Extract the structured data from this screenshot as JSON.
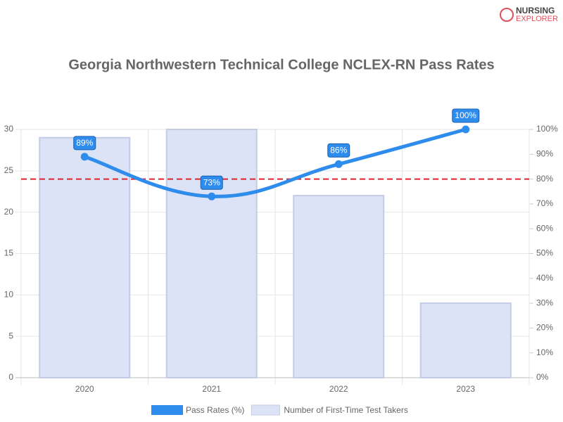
{
  "branding": {
    "line1": "NURSING",
    "line2": "EXPLORER"
  },
  "chart_data": {
    "type": "combo",
    "title": "Georgia Northwestern Technical College NCLEX-RN Pass Rates",
    "categories": [
      "2020",
      "2021",
      "2022",
      "2023"
    ],
    "series": [
      {
        "name": "Pass Rates (%)",
        "type": "line",
        "axis": "y2",
        "color": "#2e8cec",
        "values": [
          89,
          73,
          86,
          100
        ],
        "value_labels": [
          "89%",
          "73%",
          "86%",
          "100%"
        ]
      },
      {
        "name": "Number of First-Time Test Takers",
        "type": "bar",
        "color": "#dde3f6",
        "edge_color": "#c3cbe6",
        "values": [
          29,
          30,
          22,
          9
        ]
      }
    ],
    "ylim": [
      0,
      30
    ],
    "yticks": [
      0,
      5,
      10,
      15,
      20,
      25,
      30
    ],
    "y2lim": [
      0,
      100
    ],
    "y2ticks": [
      {
        "value": 0,
        "label": "0%"
      },
      {
        "value": 10,
        "label": "10%"
      },
      {
        "value": 20,
        "label": "20%"
      },
      {
        "value": 30,
        "label": "30%"
      },
      {
        "value": 40,
        "label": "40%"
      },
      {
        "value": 50,
        "label": "50%"
      },
      {
        "value": 60,
        "label": "60%"
      },
      {
        "value": 70,
        "label": "70%"
      },
      {
        "value": 80,
        "label": "80%"
      },
      {
        "value": 90,
        "label": "90%"
      },
      {
        "value": 100,
        "label": "100%"
      }
    ],
    "reference_line": {
      "value": 80,
      "axis": "y2",
      "color": "#e0242c"
    },
    "grid": true,
    "legend": "bottom"
  }
}
